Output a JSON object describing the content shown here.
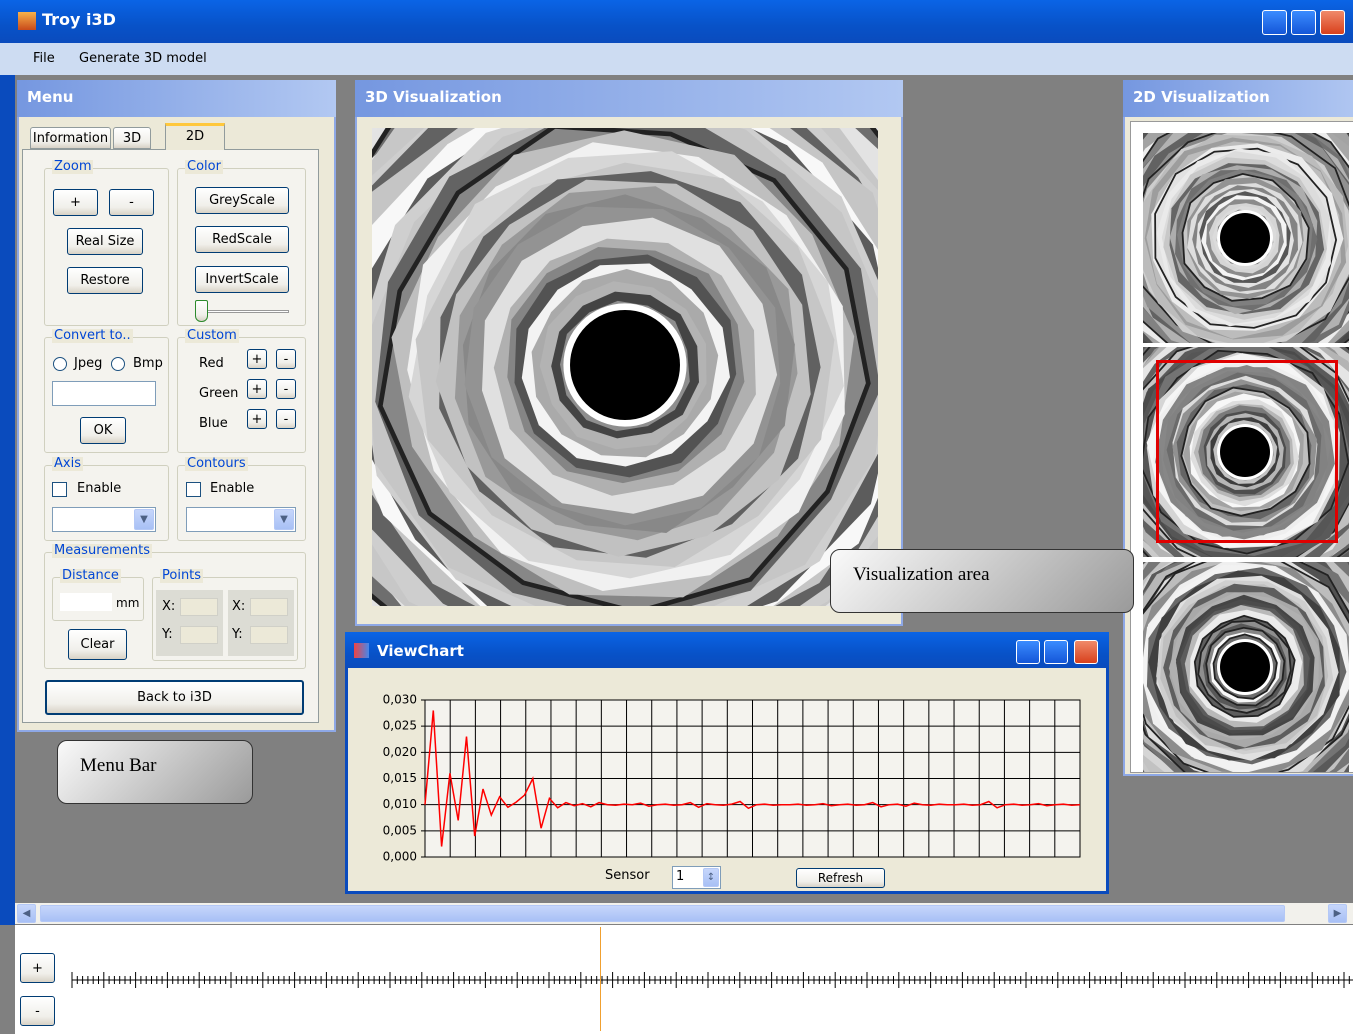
{
  "window": {
    "title": "Troy i3D"
  },
  "menubar": [
    "File",
    "Generate 3D model"
  ],
  "menu_panel": {
    "title": "Menu",
    "tabs": [
      "Information",
      "3D",
      "2D"
    ],
    "zoom": {
      "title": "Zoom",
      "buttons": [
        "+",
        "-",
        "Real Size",
        "Restore"
      ]
    },
    "color": {
      "title": "Color",
      "buttons": [
        "GreyScale",
        "RedScale",
        "InvertScale"
      ]
    },
    "convert": {
      "title": "Convert to..",
      "options": [
        "Jpeg",
        "Bmp"
      ],
      "button": "OK"
    },
    "custom": {
      "title": "Custom",
      "channels": [
        "Red",
        "Green",
        "Blue"
      ],
      "plus": "+",
      "minus": "-"
    },
    "axis": {
      "title": "Axis",
      "checkbox": "Enable"
    },
    "contours": {
      "title": "Contours",
      "checkbox": "Enable"
    },
    "measurements": {
      "title": "Measurements",
      "distance": {
        "title": "Distance",
        "unit": "mm"
      },
      "clear": "Clear",
      "points": {
        "title": "Points",
        "labels": [
          "X:",
          "Y:"
        ]
      }
    },
    "back": "Back to i3D"
  },
  "callouts": [
    "Menu Bar",
    "Visualization area"
  ],
  "viz3d": {
    "title": "3D Visualization"
  },
  "viz2d": {
    "title": "2D Visualization"
  },
  "viewchart": {
    "title": "ViewChart",
    "sensor_label": "Sensor",
    "sensor_value": "1",
    "refresh": "Refresh",
    "chart_data": {
      "type": "line",
      "color": "#ff0000",
      "grid": true,
      "ylim": [
        0,
        0.03
      ],
      "yticks": [
        {
          "value": 0,
          "label": "0,000"
        },
        {
          "value": 0.005,
          "label": "0,005"
        },
        {
          "value": 0.01,
          "label": "0,010"
        },
        {
          "value": 0.015,
          "label": "0,015"
        },
        {
          "value": 0.02,
          "label": "0,020"
        },
        {
          "value": 0.025,
          "label": "0,025"
        },
        {
          "value": 0.03,
          "label": "0,030"
        }
      ],
      "values": [
        0.01,
        0.028,
        0.002,
        0.016,
        0.007,
        0.023,
        0.004,
        0.013,
        0.008,
        0.0115,
        0.0095,
        0.0105,
        0.0118,
        0.015,
        0.0055,
        0.0112,
        0.0094,
        0.0104,
        0.0098,
        0.0102,
        0.0096,
        0.0104,
        0.01,
        0.0099,
        0.0101,
        0.01,
        0.0103,
        0.0097,
        0.01,
        0.0101,
        0.0099,
        0.01,
        0.0104,
        0.0095,
        0.0102,
        0.01,
        0.0099,
        0.0101,
        0.0106,
        0.0093,
        0.01,
        0.0101,
        0.0099,
        0.01,
        0.01,
        0.0101,
        0.0099,
        0.01,
        0.0102,
        0.0098,
        0.01,
        0.0101,
        0.0099,
        0.01,
        0.0104,
        0.0096,
        0.01,
        0.0101,
        0.0097,
        0.0103,
        0.01,
        0.0099,
        0.0101,
        0.01,
        0.01,
        0.0101,
        0.0099,
        0.01,
        0.0106,
        0.0094,
        0.01,
        0.0101,
        0.0099,
        0.01,
        0.0102,
        0.0098,
        0.01,
        0.0101,
        0.0099,
        0.01
      ]
    }
  },
  "timeline": {
    "zoom_in": "+",
    "zoom_out": "-"
  }
}
